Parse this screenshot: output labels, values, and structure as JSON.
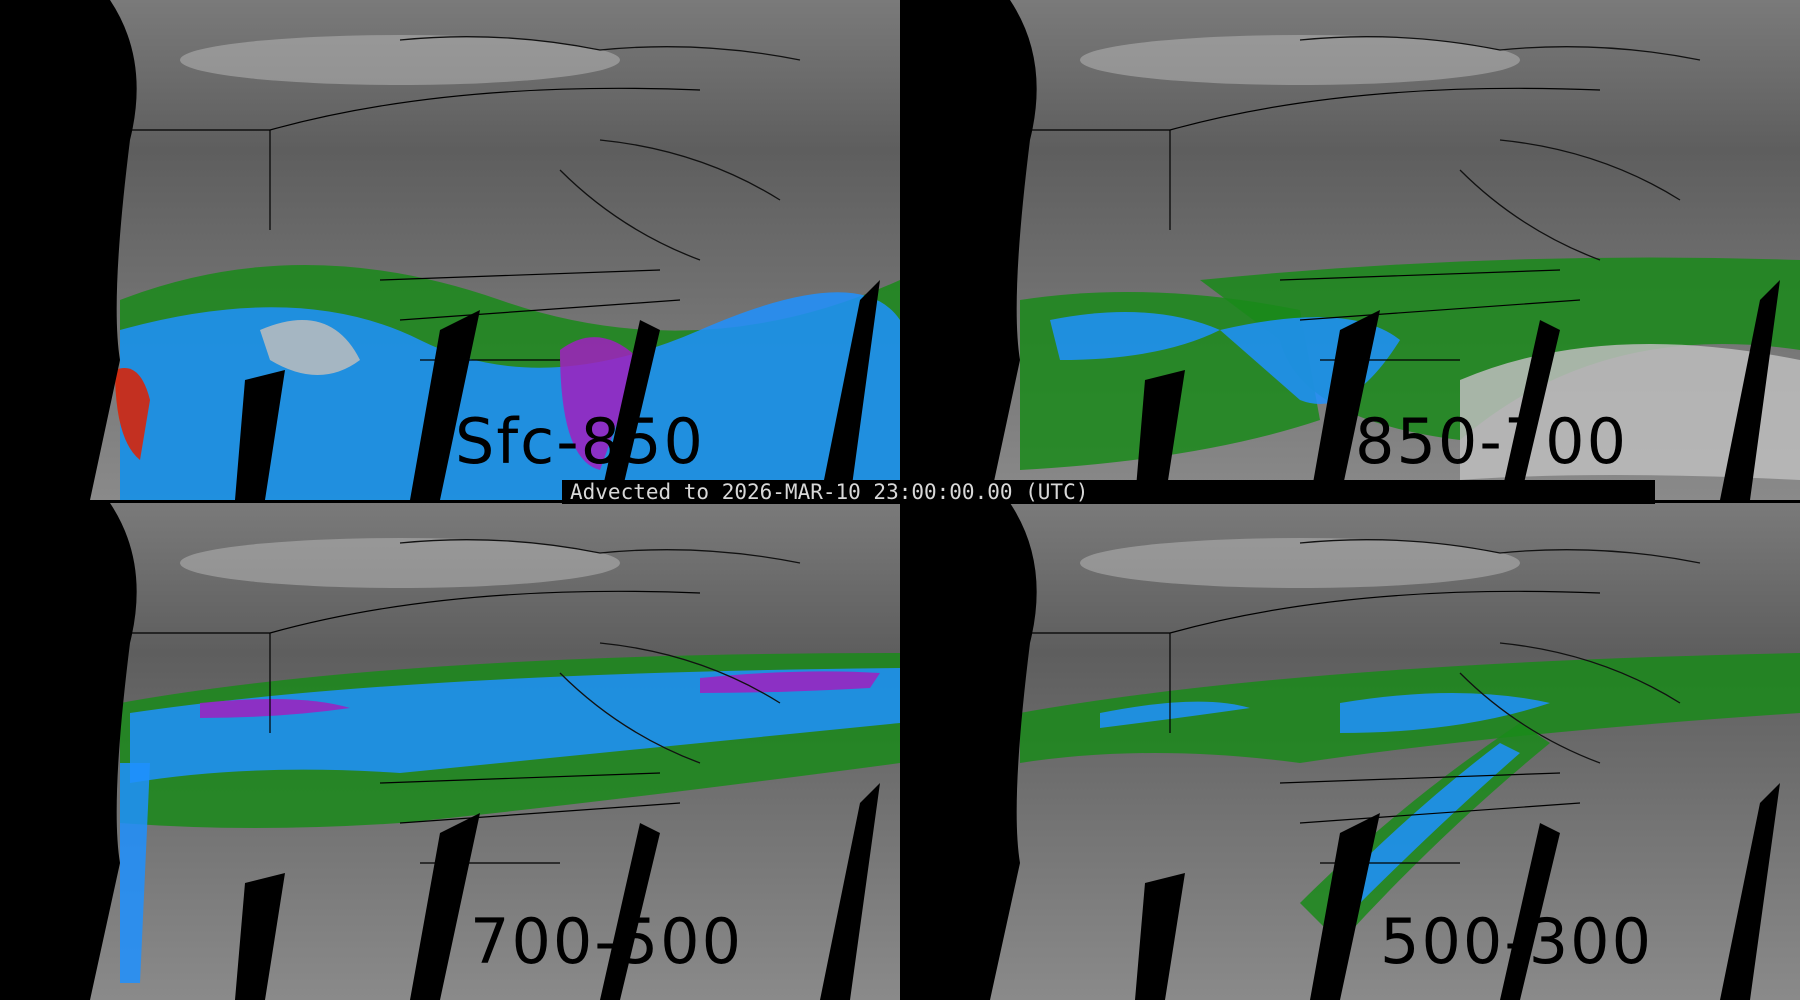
{
  "panels": [
    {
      "label": "Sfc-850"
    },
    {
      "label": "850-700"
    },
    {
      "label": "700-500"
    },
    {
      "label": "500-300"
    }
  ],
  "banner": {
    "text": "Advected to 2026-MAR-10 23:00:00.00 (UTC)"
  },
  "colors": {
    "low": "#1a8a1a",
    "mid": "#1e90ff",
    "high": "#a020c0",
    "peak": "#e02000",
    "background": "#6a6a6a"
  }
}
